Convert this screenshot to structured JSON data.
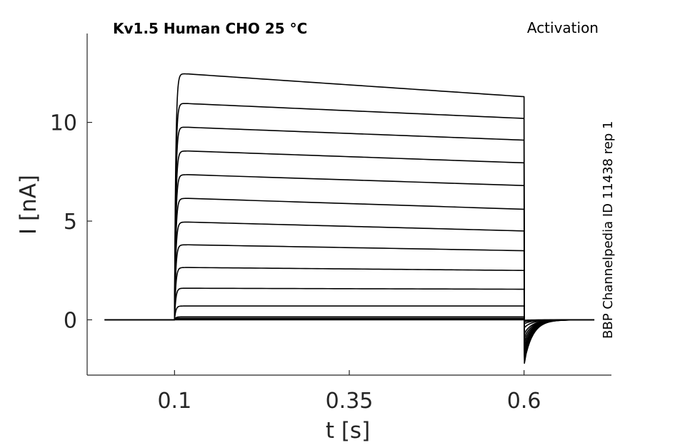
{
  "chart_data": {
    "type": "line",
    "title": "Kv1.5  Human  CHO  25 °C",
    "protocol_label": "Activation",
    "side_label": "BBP Channelpedia ID 11438 rep 1",
    "xlabel": "t [s]",
    "ylabel": "I [nA]",
    "xlim": [
      -0.025,
      0.725
    ],
    "ylim": [
      -2.8,
      14.5
    ],
    "xticks": [
      0.1,
      0.35,
      0.6
    ],
    "xtick_labels": [
      "0.1",
      "0.35",
      "0.6"
    ],
    "yticks": [
      0,
      5,
      10
    ],
    "ytick_labels": [
      "0",
      "5",
      "10"
    ],
    "grid": false,
    "legend": "none",
    "line_color": "#000000",
    "series": [
      {
        "x": [
          0.0,
          0.1,
          0.6,
          0.7
        ],
        "step_start_amp": 0.0,
        "step_end_amp": 0.0,
        "tail_min": -0.02
      },
      {
        "x": [
          0.0,
          0.1,
          0.6,
          0.7
        ],
        "step_start_amp": 0.03,
        "step_end_amp": 0.03,
        "tail_min": -0.05
      },
      {
        "x": [
          0.0,
          0.1,
          0.6,
          0.7
        ],
        "step_start_amp": 0.08,
        "step_end_amp": 0.08,
        "tail_min": -0.1
      },
      {
        "x": [
          0.0,
          0.1,
          0.6,
          0.7
        ],
        "step_start_amp": 0.15,
        "step_end_amp": 0.15,
        "tail_min": -0.2
      },
      {
        "x": [
          0.0,
          0.1,
          0.6,
          0.7
        ],
        "step_start_amp": 0.7,
        "step_end_amp": 0.7,
        "tail_min": -0.4
      },
      {
        "x": [
          0.0,
          0.1,
          0.6,
          0.7
        ],
        "step_start_amp": 1.6,
        "step_end_amp": 1.55,
        "tail_min": -0.7
      },
      {
        "x": [
          0.0,
          0.1,
          0.6,
          0.7
        ],
        "step_start_amp": 2.65,
        "step_end_amp": 2.5,
        "tail_min": -0.9
      },
      {
        "x": [
          0.0,
          0.1,
          0.6,
          0.7
        ],
        "step_start_amp": 3.8,
        "step_end_amp": 3.5,
        "tail_min": -1.1
      },
      {
        "x": [
          0.0,
          0.1,
          0.6,
          0.7
        ],
        "step_start_amp": 4.95,
        "step_end_amp": 4.5,
        "tail_min": -1.3
      },
      {
        "x": [
          0.0,
          0.1,
          0.6,
          0.7
        ],
        "step_start_amp": 6.15,
        "step_end_amp": 5.6,
        "tail_min": -1.5
      },
      {
        "x": [
          0.0,
          0.1,
          0.6,
          0.7
        ],
        "step_start_amp": 7.35,
        "step_end_amp": 6.8,
        "tail_min": -1.6
      },
      {
        "x": [
          0.0,
          0.1,
          0.6,
          0.7
        ],
        "step_start_amp": 8.55,
        "step_end_amp": 7.95,
        "tail_min": -1.8
      },
      {
        "x": [
          0.0,
          0.1,
          0.6,
          0.7
        ],
        "step_start_amp": 9.75,
        "step_end_amp": 9.1,
        "tail_min": -1.9
      },
      {
        "x": [
          0.0,
          0.1,
          0.6,
          0.7
        ],
        "step_start_amp": 10.95,
        "step_end_amp": 10.2,
        "tail_min": -2.0
      },
      {
        "x": [
          0.0,
          0.1,
          0.6,
          0.7
        ],
        "step_start_amp": 12.45,
        "step_end_amp": 11.3,
        "tail_min": -2.2
      }
    ]
  }
}
